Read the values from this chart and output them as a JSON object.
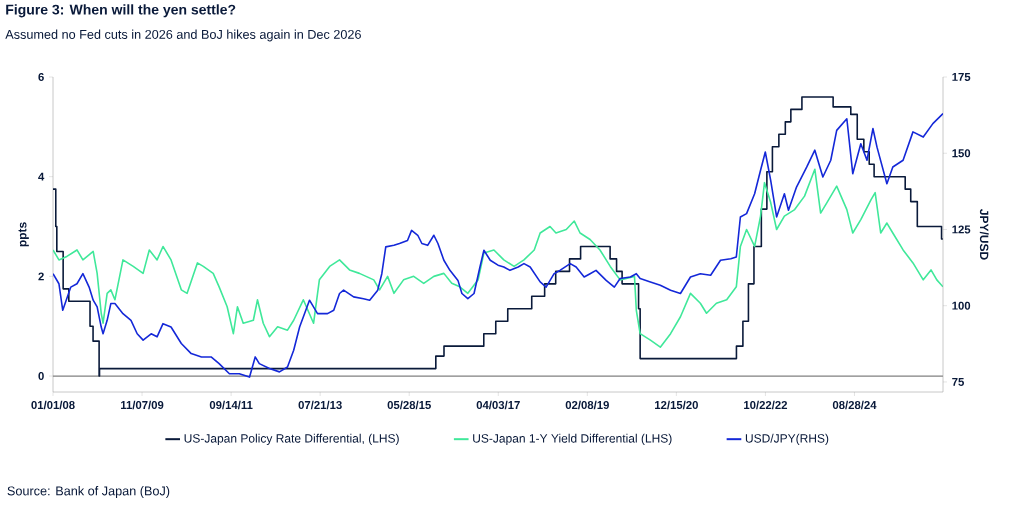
{
  "chart_data": {
    "type": "line",
    "title": "Figure 3: When will the yen settle?",
    "subtitle": "Assumed no Fed cuts in 2026 and BoJ hikes again in Dec 2026",
    "ylabel": "ppts",
    "y2label": "JPY/USD",
    "annotations": [
      "Source: Bank of Japan (BoJ)"
    ],
    "xlim": [
      "2008-01-01",
      "2026-07-01"
    ],
    "xticks": [
      {
        "value": "2008-01-01",
        "label": "01/01/08"
      },
      {
        "value": "2009-11-07",
        "label": "11/07/09"
      },
      {
        "value": "2011-09-14",
        "label": "09/14/11"
      },
      {
        "value": "2013-07-21",
        "label": "07/21/13"
      },
      {
        "value": "2015-05-28",
        "label": "05/28/15"
      },
      {
        "value": "2017-04-03",
        "label": "04/03/17"
      },
      {
        "value": "2019-02-08",
        "label": "02/08/19"
      },
      {
        "value": "2020-12-15",
        "label": "12/15/20"
      },
      {
        "value": "2022-10-22",
        "label": "10/22/22"
      },
      {
        "value": "2024-08-28",
        "label": "08/28/24"
      }
    ],
    "ylim": [
      -0.32,
      6
    ],
    "yticks": [
      0,
      2,
      4,
      6
    ],
    "y2lim": [
      71.7,
      175
    ],
    "y2ticks": [
      75,
      100,
      125,
      150,
      175
    ],
    "legend": "bottom",
    "ref_lines": [
      {
        "axis": "y",
        "value": 0,
        "color": "#808080"
      }
    ],
    "series": [
      {
        "name": "US-Japan Policy Rate Differential, (LHS)",
        "type": "step",
        "color": "#0a1a3a",
        "x": [
          "2008-01-01",
          "2008-01-22",
          "2008-01-30",
          "2008-03-18",
          "2008-04-30",
          "2008-10-08",
          "2008-10-31",
          "2008-12-16",
          "2008-12-19",
          "2015-12-16",
          "2016-02-16",
          "2016-12-14",
          "2017-03-15",
          "2017-06-14",
          "2017-12-13",
          "2018-03-21",
          "2018-06-13",
          "2018-09-26",
          "2018-12-19",
          "2019-07-31",
          "2019-09-18",
          "2019-10-30",
          "2020-03-03",
          "2020-03-15",
          "2022-03-16",
          "2022-05-04",
          "2022-06-15",
          "2022-07-27",
          "2022-09-21",
          "2022-11-02",
          "2022-12-14",
          "2023-02-01",
          "2023-03-22",
          "2023-05-03",
          "2023-07-26",
          "2024-03-19",
          "2024-07-31",
          "2024-09-18",
          "2024-11-07",
          "2024-12-18",
          "2025-01-24",
          "2025-09-17",
          "2025-10-29",
          "2025-12-18",
          "2026-06-20",
          "2026-07-01"
        ],
        "values": [
          3.75,
          3.0,
          2.5,
          1.75,
          1.5,
          1.0,
          0.7,
          0.0,
          0.15,
          0.4,
          0.6,
          0.85,
          1.1,
          1.35,
          1.6,
          1.85,
          2.1,
          2.35,
          2.6,
          2.35,
          2.1,
          1.85,
          1.35,
          0.35,
          0.6,
          1.1,
          1.85,
          2.6,
          3.35,
          4.1,
          4.6,
          4.85,
          5.1,
          5.35,
          5.6,
          5.4,
          5.25,
          4.75,
          4.5,
          4.25,
          4.0,
          3.75,
          3.5,
          3.0,
          2.75,
          2.75
        ]
      },
      {
        "name": "US-Japan 1-Y Yield Differential (LHS)",
        "color": "#40e89a",
        "x": [
          "2008-01-01",
          "2008-02-15",
          "2008-04-15",
          "2008-07-01",
          "2008-08-15",
          "2008-11-01",
          "2008-12-01",
          "2009-01-01",
          "2009-01-15",
          "2009-02-15",
          "2009-03-15",
          "2009-04-15",
          "2009-06-15",
          "2009-09-01",
          "2009-11-15",
          "2010-01-01",
          "2010-03-01",
          "2010-04-15",
          "2010-06-15",
          "2010-09-01",
          "2010-10-15",
          "2011-01-01",
          "2011-02-15",
          "2011-05-01",
          "2011-06-15",
          "2011-08-15",
          "2011-10-01",
          "2011-11-01",
          "2011-12-15",
          "2012-03-01",
          "2012-04-01",
          "2012-05-15",
          "2012-07-01",
          "2012-09-01",
          "2012-11-15",
          "2013-01-01",
          "2013-03-15",
          "2013-06-01",
          "2013-07-15",
          "2013-10-01",
          "2013-12-15",
          "2014-03-01",
          "2014-05-15",
          "2014-09-01",
          "2014-10-15",
          "2014-12-15",
          "2015-02-01",
          "2015-04-15",
          "2015-07-01",
          "2015-09-15",
          "2015-12-01",
          "2016-02-15",
          "2016-04-15",
          "2016-06-15",
          "2016-08-15",
          "2016-11-01",
          "2016-12-15",
          "2017-03-01",
          "2017-05-15",
          "2017-08-01",
          "2017-10-15",
          "2018-01-01",
          "2018-02-15",
          "2018-05-01",
          "2018-06-15",
          "2018-09-01",
          "2018-11-01",
          "2018-12-15",
          "2019-03-01",
          "2019-05-15",
          "2019-08-01",
          "2019-10-15",
          "2020-02-01",
          "2020-02-15",
          "2020-03-15",
          "2020-06-01",
          "2020-08-15",
          "2020-11-01",
          "2021-01-15",
          "2021-04-01",
          "2021-06-15",
          "2021-08-01",
          "2021-10-15",
          "2022-01-01",
          "2022-03-15",
          "2022-04-15",
          "2022-06-01",
          "2022-08-01",
          "2022-09-15",
          "2022-10-15",
          "2022-12-01",
          "2023-01-15",
          "2023-03-15",
          "2023-06-01",
          "2023-08-15",
          "2023-11-01",
          "2023-12-15",
          "2024-02-01",
          "2024-04-15",
          "2024-07-01",
          "2024-08-15",
          "2024-10-15",
          "2025-01-01",
          "2025-02-01",
          "2025-03-15",
          "2025-05-01",
          "2025-06-15",
          "2025-09-01",
          "2025-11-15",
          "2026-02-01",
          "2026-04-01",
          "2026-05-15",
          "2026-07-01"
        ],
        "values": [
          2.53,
          2.33,
          2.4,
          2.53,
          2.33,
          2.5,
          2.06,
          1.26,
          1.06,
          1.66,
          1.73,
          1.53,
          2.33,
          2.2,
          2.06,
          2.53,
          2.33,
          2.6,
          2.33,
          1.73,
          1.66,
          2.27,
          2.2,
          2.06,
          1.79,
          1.39,
          0.85,
          1.39,
          1.06,
          1.12,
          1.53,
          1.06,
          0.79,
          0.99,
          0.92,
          1.12,
          1.53,
          1.06,
          1.93,
          2.2,
          2.33,
          2.13,
          2.06,
          1.93,
          1.73,
          2.0,
          1.66,
          1.93,
          2.0,
          1.86,
          2.0,
          2.06,
          1.86,
          1.79,
          1.66,
          1.93,
          2.47,
          2.53,
          2.33,
          2.2,
          2.33,
          2.53,
          2.87,
          3.0,
          2.87,
          2.94,
          3.11,
          2.87,
          2.74,
          2.53,
          2.2,
          1.93,
          2.0,
          1.32,
          0.85,
          0.72,
          0.58,
          0.85,
          1.19,
          1.66,
          1.46,
          1.26,
          1.46,
          1.53,
          1.79,
          2.6,
          2.94,
          2.6,
          3.21,
          3.88,
          3.48,
          2.94,
          3.21,
          3.34,
          3.61,
          4.15,
          3.27,
          3.48,
          3.81,
          3.34,
          2.87,
          3.14,
          3.54,
          3.68,
          2.87,
          3.07,
          2.87,
          2.53,
          2.27,
          1.93,
          2.13,
          1.93,
          1.79
        ]
      },
      {
        "name": "USD/JPY(RHS)",
        "axis": "y2",
        "color": "#1428d8",
        "x": [
          "2008-01-01",
          "2008-02-15",
          "2008-03-15",
          "2008-05-15",
          "2008-07-01",
          "2008-08-15",
          "2008-10-01",
          "2008-11-01",
          "2008-12-01",
          "2009-01-01",
          "2009-01-15",
          "2009-02-15",
          "2009-03-15",
          "2009-04-15",
          "2009-06-15",
          "2009-08-15",
          "2009-10-01",
          "2009-11-15",
          "2010-01-15",
          "2010-03-01",
          "2010-04-15",
          "2010-06-15",
          "2010-09-01",
          "2010-11-15",
          "2011-02-01",
          "2011-04-15",
          "2011-06-15",
          "2011-09-01",
          "2011-11-15",
          "2012-02-01",
          "2012-03-15",
          "2012-04-15",
          "2012-07-01",
          "2012-09-15",
          "2012-11-15",
          "2013-01-01",
          "2013-02-15",
          "2013-05-01",
          "2013-07-01",
          "2013-09-15",
          "2013-11-01",
          "2013-12-15",
          "2014-01-15",
          "2014-04-01",
          "2014-06-15",
          "2014-08-01",
          "2014-10-01",
          "2014-11-01",
          "2014-12-01",
          "2015-02-01",
          "2015-03-15",
          "2015-05-15",
          "2015-06-15",
          "2015-08-01",
          "2015-09-01",
          "2015-10-15",
          "2015-12-01",
          "2016-01-01",
          "2016-02-15",
          "2016-04-01",
          "2016-06-01",
          "2016-07-01",
          "2016-08-15",
          "2016-10-01",
          "2016-11-15",
          "2016-12-15",
          "2017-02-01",
          "2017-04-01",
          "2017-05-15",
          "2017-07-01",
          "2017-09-01",
          "2017-10-15",
          "2017-12-01",
          "2018-02-15",
          "2018-04-01",
          "2018-06-01",
          "2018-07-15",
          "2018-10-01",
          "2018-11-15",
          "2019-01-15",
          "2019-03-01",
          "2019-04-15",
          "2019-07-01",
          "2019-09-01",
          "2019-10-15",
          "2020-01-01",
          "2020-02-15",
          "2020-03-15",
          "2020-06-01",
          "2020-08-15",
          "2020-11-01",
          "2021-01-15",
          "2021-04-01",
          "2021-06-15",
          "2021-09-01",
          "2021-11-15",
          "2022-02-01",
          "2022-03-15",
          "2022-04-15",
          "2022-06-01",
          "2022-08-01",
          "2022-09-15",
          "2022-10-21",
          "2022-12-01",
          "2023-01-15",
          "2023-03-15",
          "2023-04-15",
          "2023-06-15",
          "2023-09-01",
          "2023-11-01",
          "2024-01-01",
          "2024-03-01",
          "2024-04-15",
          "2024-07-01",
          "2024-08-15",
          "2024-10-15",
          "2024-12-01",
          "2025-01-15",
          "2025-02-15",
          "2025-05-01",
          "2025-06-15",
          "2025-09-01",
          "2025-11-15",
          "2026-02-01",
          "2026-04-15",
          "2026-07-01"
        ],
        "values": [
          110.5,
          107.2,
          98.5,
          106.1,
          107.2,
          110.5,
          106.1,
          101.8,
          99.6,
          93.0,
          90.8,
          95.2,
          100.7,
          100.7,
          97.4,
          95.2,
          90.8,
          88.7,
          90.8,
          89.8,
          94.1,
          93.0,
          87.6,
          84.3,
          83.2,
          83.2,
          81.0,
          77.7,
          77.7,
          76.6,
          83.2,
          81.0,
          79.4,
          78.3,
          79.9,
          85.4,
          93.0,
          101.8,
          97.4,
          97.4,
          98.5,
          104.0,
          105.1,
          102.9,
          102.3,
          101.8,
          105.1,
          110.5,
          119.3,
          119.8,
          120.4,
          121.4,
          124.7,
          123.1,
          120.4,
          119.8,
          123.1,
          120.4,
          114.9,
          111.6,
          108.3,
          104.0,
          102.3,
          104.0,
          112.7,
          118.2,
          114.9,
          113.3,
          112.7,
          111.6,
          112.7,
          113.8,
          112.7,
          107.8,
          106.1,
          110.5,
          111.6,
          113.8,
          112.7,
          109.4,
          110.5,
          111.6,
          108.3,
          106.1,
          108.9,
          109.4,
          110.5,
          108.9,
          107.8,
          106.7,
          105.1,
          104.0,
          109.4,
          110.5,
          110.0,
          114.9,
          115.4,
          116.0,
          129.1,
          130.2,
          136.7,
          144.4,
          150.4,
          141.1,
          129.1,
          136.7,
          131.3,
          138.9,
          145.5,
          151.0,
          142.2,
          147.7,
          157.5,
          161.3,
          143.3,
          153.1,
          147.7,
          158.1,
          152.0,
          140.0,
          145.5,
          147.7,
          157.0,
          155.3,
          159.7,
          163.0
        ]
      }
    ]
  }
}
